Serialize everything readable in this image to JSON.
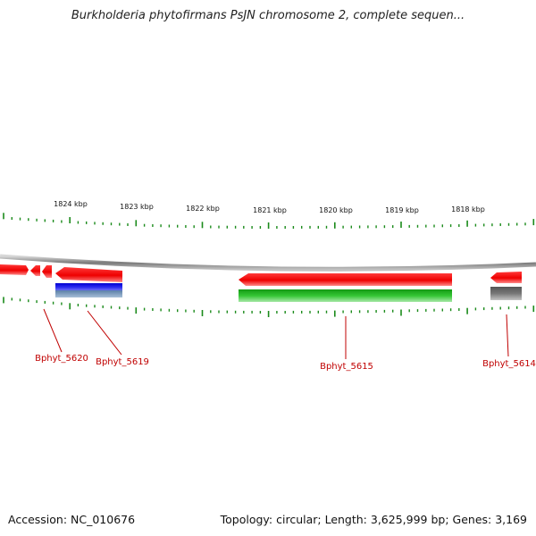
{
  "title": "Burkholderia phytofirmans PsJN chromosome 2, complete sequen...",
  "footer": {
    "accession": "Accession: NC_010676",
    "summary": "Topology: circular; Length: 3,625,999 bp; Genes: 3,169"
  },
  "colors": {
    "forward_gene": "#ff0000",
    "cds_green": "#2db82d",
    "cds_blue": "#1010e0",
    "pseudo_gray": "#6a6a6a",
    "backbone": "#8c8c8c",
    "tick": "#1a8a1a",
    "label": "#c00000"
  },
  "ruler": {
    "labels": [
      "1824 kbp",
      "1823 kbp",
      "1822 kbp",
      "1821 kbp",
      "1820 kbp",
      "1819 kbp",
      "1818 kbp"
    ]
  },
  "genes": [
    {
      "label": "Bphyt_5620"
    },
    {
      "label": "Bphyt_5619"
    },
    {
      "label": "Bphyt_5615"
    },
    {
      "label": "Bphyt_5614"
    }
  ]
}
